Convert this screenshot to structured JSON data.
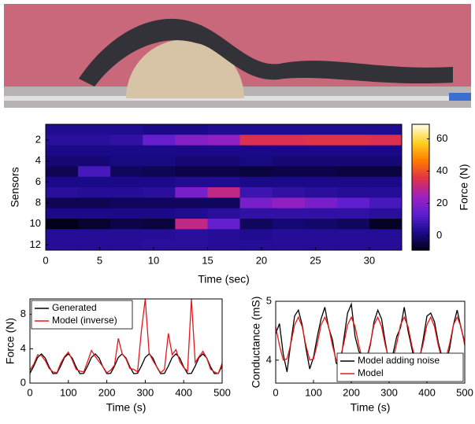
{
  "chart_data": [
    {
      "type": "heatmap",
      "ylabel": "Sensors",
      "xlabel": "Time (sec)",
      "colorbar_label": "Force (N)",
      "x_edges": [
        0,
        3,
        6,
        9,
        12,
        15,
        18,
        21,
        24,
        27,
        30,
        33
      ],
      "y": [
        1,
        2,
        3,
        4,
        5,
        6,
        7,
        8,
        9,
        10,
        11,
        12
      ],
      "values": [
        [
          3,
          3,
          3,
          2,
          2,
          3,
          3,
          3,
          3,
          3,
          3
        ],
        [
          5,
          5,
          6,
          15,
          20,
          22,
          35,
          35,
          36,
          36,
          35
        ],
        [
          2,
          2,
          2,
          2,
          2,
          2,
          2,
          2,
          2,
          2,
          2
        ],
        [
          0,
          0,
          1,
          1,
          0,
          0,
          1,
          0,
          0,
          0,
          0
        ],
        [
          -3,
          10,
          -2,
          -3,
          -4,
          -4,
          -5,
          -4,
          -4,
          -5,
          -5
        ],
        [
          2,
          2,
          2,
          2,
          3,
          3,
          2,
          2,
          2,
          2,
          2
        ],
        [
          5,
          4,
          4,
          5,
          18,
          30,
          8,
          6,
          5,
          4,
          4
        ],
        [
          -3,
          -3,
          -2,
          -2,
          -2,
          -2,
          18,
          22,
          18,
          14,
          10
        ],
        [
          2,
          2,
          2,
          2,
          3,
          5,
          6,
          6,
          6,
          6,
          5
        ],
        [
          -8,
          -6,
          -4,
          -5,
          30,
          15,
          -2,
          0,
          -1,
          -2,
          -7
        ],
        [
          4,
          4,
          4,
          4,
          5,
          4,
          3,
          4,
          4,
          4,
          4
        ],
        [
          4,
          4,
          4,
          5,
          5,
          4,
          4,
          4,
          4,
          4,
          4
        ]
      ],
      "xlim": [
        0,
        33
      ],
      "xticks": [
        0,
        5,
        10,
        15,
        20,
        25,
        30
      ],
      "ylim": [
        0.5,
        12.5
      ],
      "yticks": [
        2,
        4,
        6,
        8,
        10,
        12
      ],
      "clim": [
        -9,
        69
      ],
      "cticks": [
        0,
        20,
        40,
        60
      ],
      "colormap": [
        "#000010",
        "#1a0a8c",
        "#5a1fd0",
        "#a020c0",
        "#e0304a",
        "#ff7a00",
        "#ffd21e",
        "#fffde8"
      ]
    },
    {
      "type": "line",
      "xlabel": "Time (s)",
      "ylabel": "Force (N)",
      "legend": "upper left",
      "x": [
        0,
        10,
        20,
        30,
        40,
        50,
        60,
        70,
        80,
        90,
        100,
        110,
        120,
        130,
        140,
        150,
        160,
        170,
        180,
        190,
        200,
        210,
        220,
        230,
        240,
        250,
        260,
        270,
        280,
        290,
        300,
        310,
        320,
        330,
        340,
        350,
        360,
        370,
        380,
        390,
        400,
        410,
        420,
        430,
        440,
        450,
        460,
        470,
        480,
        490,
        500
      ],
      "series": [
        {
          "name": "Generated",
          "color": "#000000",
          "values": [
            1.14,
            1.99,
            2.99,
            3.4,
            2.91,
            1.88,
            1.1,
            1.14,
            1.99,
            2.99,
            3.4,
            2.91,
            1.88,
            1.1,
            1.14,
            1.99,
            2.99,
            3.4,
            2.91,
            1.88,
            1.1,
            1.14,
            1.99,
            2.99,
            3.4,
            2.91,
            1.88,
            1.1,
            1.14,
            1.99,
            2.99,
            3.4,
            2.91,
            1.88,
            1.1,
            1.14,
            1.99,
            2.99,
            3.4,
            2.91,
            1.88,
            1.1,
            1.14,
            1.99,
            2.99,
            3.4,
            2.91,
            1.88,
            1.1,
            1.14,
            1.99
          ]
        },
        {
          "name": "Model (inverse)",
          "color": "#e8161b",
          "values": [
            1.5,
            2.2,
            3.3,
            3.2,
            2.6,
            1.7,
            1.3,
            1.2,
            2.3,
            3.1,
            3.6,
            2.7,
            1.6,
            1.4,
            1.3,
            2.5,
            3.8,
            3.1,
            2.5,
            1.9,
            1.2,
            1.5,
            2.1,
            5.2,
            3.4,
            2.8,
            1.7,
            1.6,
            1.3,
            6.1,
            9.8,
            3.5,
            2.6,
            1.9,
            1.2,
            1.6,
            5.8,
            3.3,
            3.9,
            2.5,
            1.8,
            1.4,
            9.8,
            2.4,
            3.1,
            3.7,
            2.9,
            1.6,
            1.3,
            1.1,
            2.3
          ]
        }
      ],
      "xlim": [
        0,
        500
      ],
      "xticks": [
        0,
        100,
        200,
        300,
        400,
        500
      ],
      "ylim": [
        0,
        9.8
      ],
      "yticks": [
        0,
        4,
        8
      ]
    },
    {
      "type": "line",
      "xlabel": "Time (s)",
      "ylabel": "Conductance (mS)",
      "legend": "lower right",
      "x": [
        0,
        10,
        20,
        30,
        40,
        50,
        60,
        70,
        80,
        90,
        100,
        110,
        120,
        130,
        140,
        150,
        160,
        170,
        180,
        190,
        200,
        210,
        220,
        230,
        240,
        250,
        260,
        270,
        280,
        290,
        300,
        310,
        320,
        330,
        340,
        350,
        360,
        370,
        380,
        390,
        400,
        410,
        420,
        430,
        440,
        450,
        460,
        470,
        480,
        490,
        500
      ],
      "series": [
        {
          "name": "Model adding noise",
          "color": "#000000",
          "values": [
            4.45,
            4.62,
            4.1,
            3.8,
            4.3,
            4.75,
            4.85,
            4.6,
            4.2,
            3.85,
            4.05,
            4.4,
            4.7,
            4.9,
            4.55,
            4.35,
            3.95,
            3.9,
            4.35,
            4.8,
            4.95,
            4.4,
            4.15,
            4.05,
            4.0,
            4.25,
            4.65,
            4.85,
            4.7,
            4.3,
            3.95,
            4.1,
            4.4,
            4.55,
            4.9,
            4.5,
            4.2,
            3.9,
            4.0,
            4.35,
            4.75,
            4.8,
            4.65,
            4.3,
            4.05,
            3.95,
            4.2,
            4.6,
            4.85,
            4.55,
            4.3
          ]
        },
        {
          "name": "Model",
          "color": "#e8161b",
          "values": [
            4.57,
            4.25,
            4.0,
            4.02,
            4.28,
            4.6,
            4.73,
            4.57,
            4.25,
            4.0,
            4.02,
            4.28,
            4.6,
            4.73,
            4.57,
            4.25,
            4.0,
            4.02,
            4.28,
            4.6,
            4.73,
            4.57,
            4.25,
            4.0,
            4.02,
            4.28,
            4.6,
            4.73,
            4.57,
            4.25,
            4.0,
            4.02,
            4.28,
            4.6,
            4.73,
            4.57,
            4.25,
            4.0,
            4.02,
            4.28,
            4.6,
            4.73,
            4.57,
            4.25,
            4.0,
            4.02,
            4.28,
            4.6,
            4.73,
            4.57,
            4.25
          ]
        }
      ],
      "xlim": [
        0,
        500
      ],
      "xticks": [
        0,
        100,
        200,
        300,
        400,
        500
      ],
      "ylim": [
        3.61,
        5
      ],
      "yticks": [
        4,
        5
      ]
    }
  ]
}
